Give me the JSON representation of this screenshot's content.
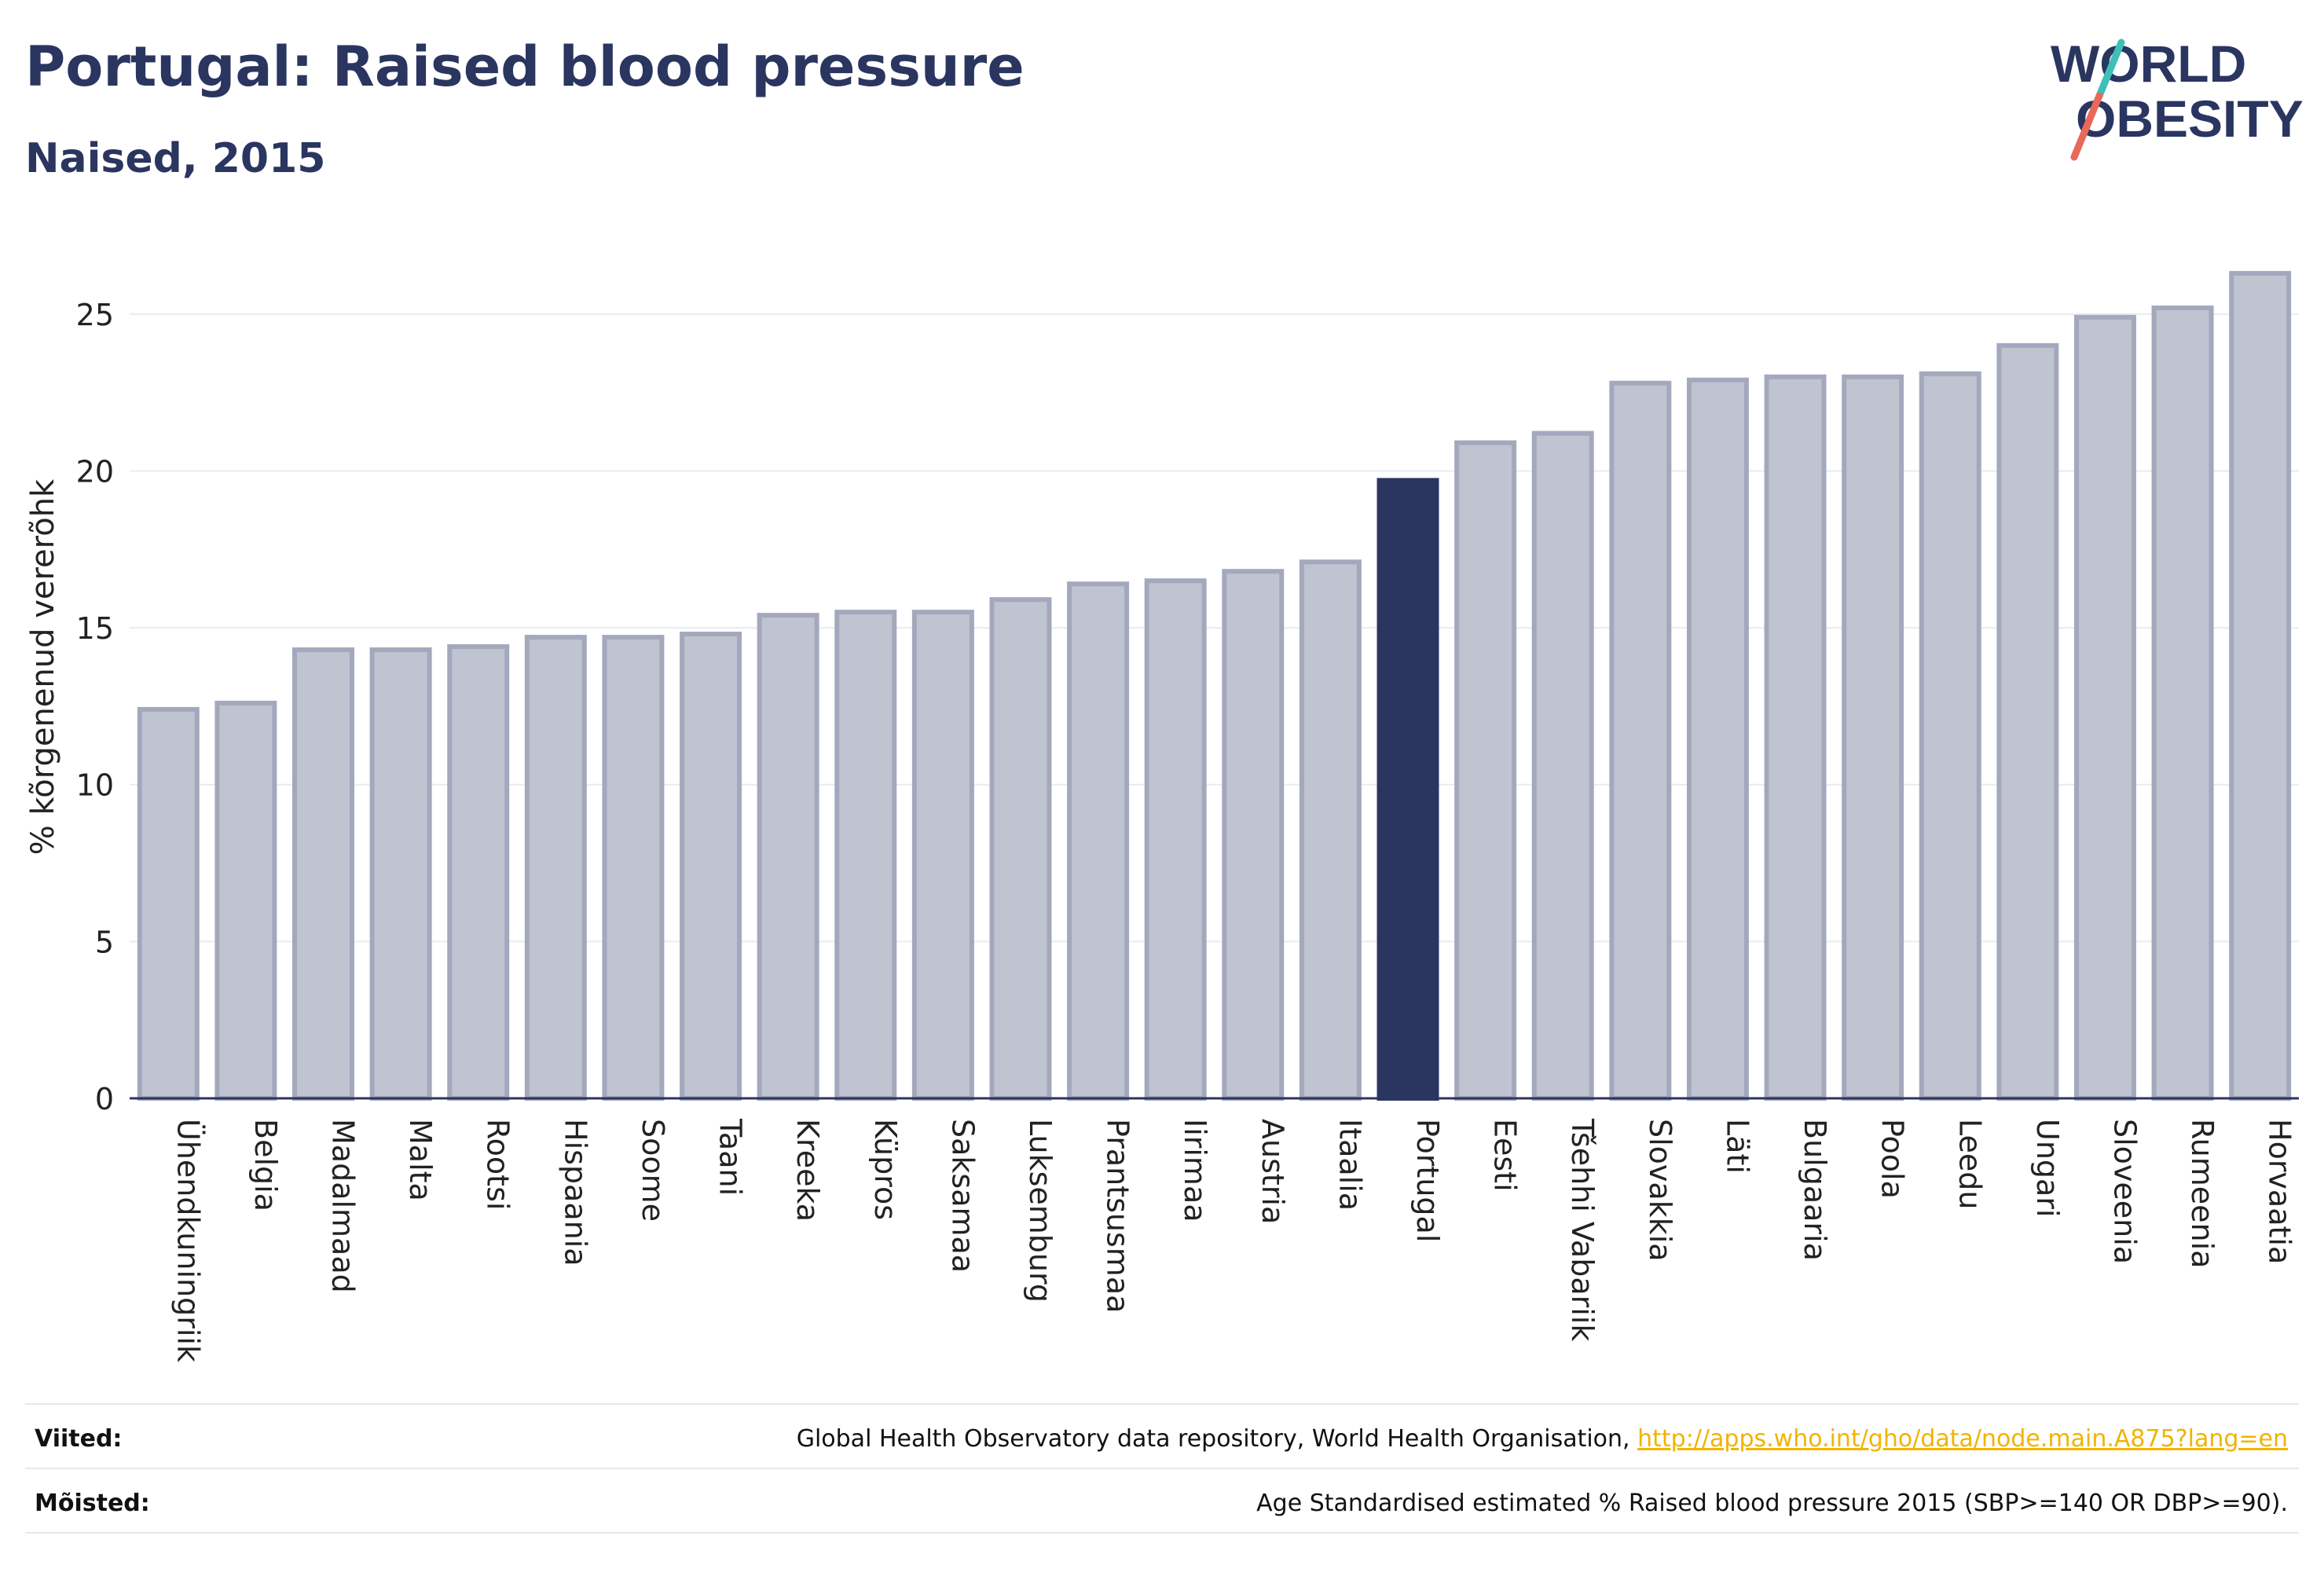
{
  "header": {
    "title": "Portugal: Raised blood pressure",
    "subtitle": "Naised, 2015",
    "logo_text_top": "WORLD",
    "logo_text_bottom": "OBESITY"
  },
  "chart_data": {
    "type": "bar",
    "ylabel": "% kõrgenenud vererõhk",
    "ylim": [
      0,
      27.5
    ],
    "yticks": [
      0,
      5,
      10,
      15,
      20,
      25
    ],
    "grid": true,
    "highlight": "Portugal",
    "categories": [
      "Ühendkuningriik",
      "Belgia",
      "Madalmaad",
      "Malta",
      "Rootsi",
      "Hispaania",
      "Soome",
      "Taani",
      "Kreeka",
      "Küpros",
      "Saksamaa",
      "Luksemburg",
      "Prantsusmaa",
      "Iirimaa",
      "Austria",
      "Itaalia",
      "Portugal",
      "Eesti",
      "Tšehhi Vabariik",
      "Slovakkia",
      "Läti",
      "Bulgaaria",
      "Poola",
      "Leedu",
      "Ungari",
      "Sloveenia",
      "Rumeenia",
      "Horvaatia"
    ],
    "values": [
      12.4,
      12.6,
      14.3,
      14.3,
      14.4,
      14.7,
      14.7,
      14.8,
      15.4,
      15.5,
      15.5,
      15.9,
      16.4,
      16.5,
      16.8,
      17.1,
      19.7,
      20.9,
      21.2,
      22.8,
      22.9,
      23.0,
      23.0,
      23.1,
      24.0,
      24.9,
      25.2,
      26.3
    ]
  },
  "colors": {
    "bar_fill": "#c0c3d0",
    "bar_stroke": "#a3a8bd",
    "highlight": "#2a3560",
    "title": "#2a3560",
    "link": "#f0b400"
  },
  "footer": {
    "sources_label": "Viited:",
    "sources_text": "Global Health Observatory data repository, World Health Organisation,",
    "sources_link": "http://apps.who.int/gho/data/node.main.A875?lang=en",
    "definitions_label": "Mõisted:",
    "definitions_text": "Age Standardised estimated % Raised blood pressure 2015 (SBP>=140 OR DBP>=90)."
  }
}
